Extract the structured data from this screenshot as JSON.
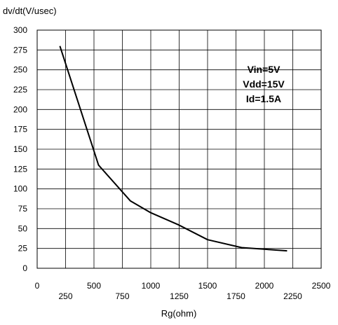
{
  "chart_data": {
    "type": "line",
    "ylabel": "dv/dt(V/usec)",
    "xlabel": "Rg(ohm)",
    "xlim": [
      0,
      2500
    ],
    "ylim": [
      0,
      300
    ],
    "x_ticks": [
      0,
      250,
      500,
      750,
      1000,
      1250,
      1500,
      1750,
      2000,
      2250,
      2500
    ],
    "y_ticks": [
      0,
      25,
      50,
      75,
      100,
      125,
      150,
      175,
      200,
      225,
      250,
      275,
      300
    ],
    "grid": true,
    "annotations": [
      "Vin=5V",
      "Vdd=15V",
      "Id=1.5A"
    ],
    "series": [
      {
        "x": [
          200,
          540,
          820,
          1000,
          1240,
          1500,
          1800,
          2200
        ],
        "y": [
          280,
          130,
          85,
          70,
          55,
          36,
          26,
          22
        ]
      }
    ]
  }
}
